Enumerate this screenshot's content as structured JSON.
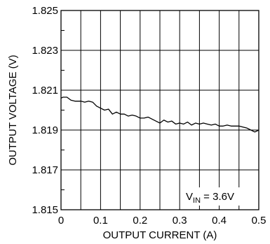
{
  "chart_data": {
    "type": "line",
    "title": "",
    "xlabel": "OUTPUT CURRENT (A)",
    "ylabel": "OUTPUT VOLTAGE (V)",
    "xlim": [
      0,
      0.5
    ],
    "ylim": [
      1.815,
      1.825
    ],
    "grid": true,
    "x_ticks": [
      0,
      0.05,
      0.1,
      0.15,
      0.2,
      0.25,
      0.3,
      0.35,
      0.4,
      0.45,
      0.5
    ],
    "x_tick_labels": [
      "0",
      "",
      "0.1",
      "",
      "0.2",
      "",
      "0.3",
      "",
      "0.4",
      "",
      "0.5"
    ],
    "y_ticks": [
      1.815,
      1.816,
      1.817,
      1.818,
      1.819,
      1.82,
      1.821,
      1.822,
      1.823,
      1.824,
      1.825
    ],
    "y_tick_labels": [
      "1.815",
      "",
      "1.817",
      "",
      "1.819",
      "",
      "1.821",
      "",
      "1.823",
      "",
      "1.825"
    ],
    "annotation": {
      "main": "V",
      "sub": "IN",
      "rest": " = 3.6V"
    },
    "series": [
      {
        "color": "#000000",
        "x": [
          0,
          0.005,
          0.015,
          0.025,
          0.035,
          0.05,
          0.06,
          0.07,
          0.08,
          0.09,
          0.1,
          0.11,
          0.12,
          0.13,
          0.14,
          0.15,
          0.16,
          0.17,
          0.18,
          0.19,
          0.2,
          0.21,
          0.22,
          0.23,
          0.24,
          0.25,
          0.26,
          0.27,
          0.28,
          0.29,
          0.3,
          0.31,
          0.32,
          0.33,
          0.34,
          0.35,
          0.36,
          0.37,
          0.38,
          0.39,
          0.4,
          0.41,
          0.42,
          0.43,
          0.44,
          0.45,
          0.46,
          0.47,
          0.48,
          0.49,
          0.5
        ],
        "y": [
          1.8206,
          1.82065,
          1.82065,
          1.8205,
          1.82045,
          1.82045,
          1.8204,
          1.82045,
          1.8204,
          1.8202,
          1.8201,
          1.82,
          1.82005,
          1.8198,
          1.8199,
          1.8198,
          1.8198,
          1.8197,
          1.81975,
          1.8197,
          1.8196,
          1.8196,
          1.81965,
          1.81955,
          1.81945,
          1.81935,
          1.8195,
          1.8194,
          1.81945,
          1.8193,
          1.81935,
          1.8193,
          1.8194,
          1.81925,
          1.81935,
          1.8193,
          1.81935,
          1.8193,
          1.81925,
          1.8193,
          1.8192,
          1.8192,
          1.81925,
          1.8192,
          1.8192,
          1.8192,
          1.81915,
          1.8191,
          1.819,
          1.8189,
          1.819
        ]
      }
    ]
  }
}
